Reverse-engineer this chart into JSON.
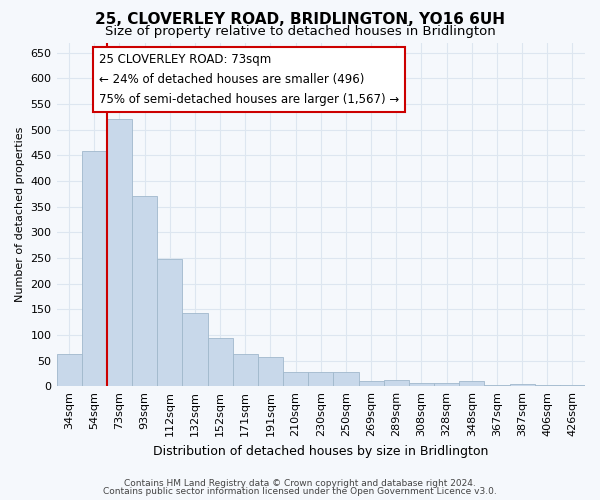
{
  "title": "25, CLOVERLEY ROAD, BRIDLINGTON, YO16 6UH",
  "subtitle": "Size of property relative to detached houses in Bridlington",
  "xlabel": "Distribution of detached houses by size in Bridlington",
  "ylabel": "Number of detached properties",
  "categories": [
    "34sqm",
    "54sqm",
    "73sqm",
    "93sqm",
    "112sqm",
    "132sqm",
    "152sqm",
    "171sqm",
    "191sqm",
    "210sqm",
    "230sqm",
    "250sqm",
    "269sqm",
    "289sqm",
    "308sqm",
    "328sqm",
    "348sqm",
    "367sqm",
    "387sqm",
    "406sqm",
    "426sqm"
  ],
  "values": [
    62,
    458,
    520,
    370,
    248,
    143,
    93,
    62,
    57,
    27,
    27,
    27,
    11,
    13,
    7,
    7,
    10,
    3,
    4,
    3,
    3
  ],
  "bar_color": "#c8d8ea",
  "bar_edge_color": "#a0b8cc",
  "vline_color": "#cc0000",
  "vline_x_index": 2,
  "annotation_text_line1": "25 CLOVERLEY ROAD: 73sqm",
  "annotation_text_line2": "← 24% of detached houses are smaller (496)",
  "annotation_text_line3": "75% of semi-detached houses are larger (1,567) →",
  "ylim": [
    0,
    670
  ],
  "background_color": "#f5f8fc",
  "grid_color": "#dde6f0",
  "footnote1": "Contains HM Land Registry data © Crown copyright and database right 2024.",
  "footnote2": "Contains public sector information licensed under the Open Government Licence v3.0.",
  "title_fontsize": 11,
  "subtitle_fontsize": 9.5,
  "xlabel_fontsize": 9,
  "ylabel_fontsize": 8,
  "tick_fontsize": 8,
  "annotation_fontsize": 8.5,
  "footnote_fontsize": 6.5
}
